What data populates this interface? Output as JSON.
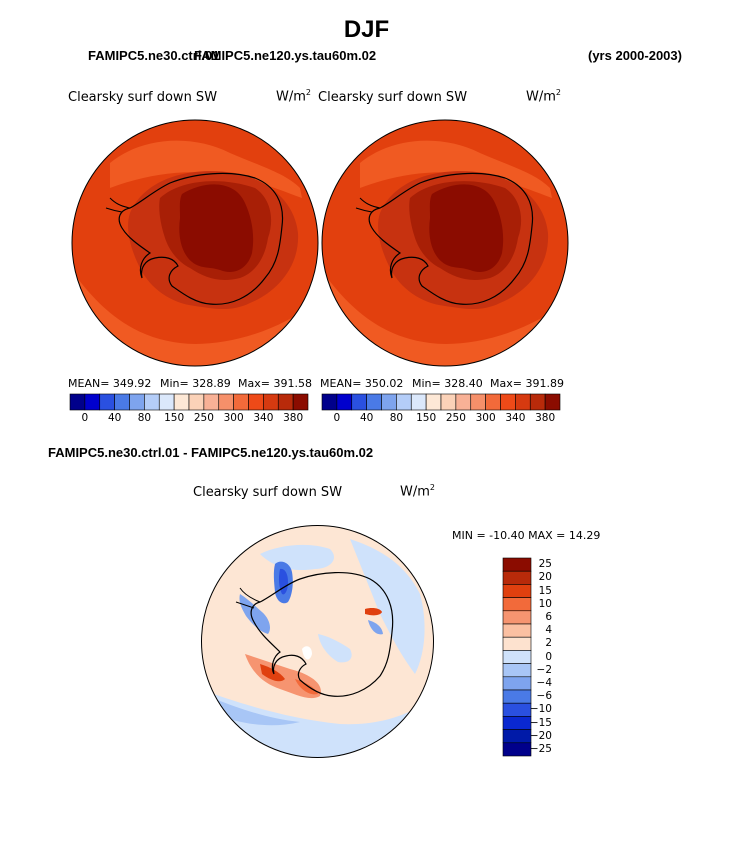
{
  "figure": {
    "title": "DJF",
    "case_left": "FAMIPC5.ne30.ctrl.01",
    "case_right_overlap": "FAMIPC5.ne120.ys.tau60m.02",
    "years": "(yrs 2000-2003)",
    "diff_title": "FAMIPC5.ne30.ctrl.01 - FAMIPC5.ne120.ys.tau60m.02"
  },
  "panels": [
    {
      "variable": "Clearsky surf down SW",
      "units": "W/m",
      "units_sup": "2",
      "mean": "MEAN= 349.92",
      "min": "Min= 328.89",
      "max": "Max= 391.58"
    },
    {
      "variable": "Clearsky surf down SW",
      "units": "W/m",
      "units_sup": "2",
      "mean": "MEAN= 350.02",
      "min": "Min= 328.40",
      "max": "Max= 391.89"
    }
  ],
  "diff_panel": {
    "variable": "Clearsky surf down SW",
    "units": "W/m",
    "units_sup": "2",
    "minmax": "MIN = -10.40 MAX =  14.29"
  },
  "colorbar_abs": {
    "colors": [
      "#00008b",
      "#0000cd",
      "#2a50e0",
      "#4a7ae6",
      "#7ea4ee",
      "#b4cdf8",
      "#dbe8fb",
      "#fde8d6",
      "#fbd2b8",
      "#f8b196",
      "#f6906a",
      "#f26a3a",
      "#ee4a18",
      "#d63a10",
      "#b82a0a",
      "#8b0c00"
    ],
    "ticks": [
      "0",
      "40",
      "80",
      "150",
      "250",
      "300",
      "340",
      "380"
    ]
  },
  "colorbar_diff": {
    "colors": [
      "#8b0c00",
      "#b82a0a",
      "#e0400f",
      "#f26a3a",
      "#f69470",
      "#fbc0a2",
      "#fde2cf",
      "#cfe2fb",
      "#a8c6f6",
      "#7ea4ee",
      "#4a7ae6",
      "#2a50e0",
      "#0a28d0",
      "#001aa8",
      "#00008b"
    ],
    "ticks": [
      "25",
      "20",
      "15",
      "10",
      "6",
      "4",
      "2",
      "0",
      "-2",
      "-4",
      "-6",
      "-10",
      "-15",
      "-20",
      "-25"
    ]
  },
  "chart_data": [
    {
      "type": "heatmap",
      "title": "Clearsky surf down SW",
      "units": "W/m2",
      "projection": "south polar stereographic",
      "stats": {
        "mean": 349.92,
        "min": 328.89,
        "max": 391.58
      },
      "levels": [
        0,
        40,
        80,
        150,
        250,
        300,
        340,
        380
      ]
    },
    {
      "type": "heatmap",
      "title": "Clearsky surf down SW",
      "units": "W/m2",
      "projection": "south polar stereographic",
      "stats": {
        "mean": 350.02,
        "min": 328.4,
        "max": 391.89
      },
      "levels": [
        0,
        40,
        80,
        150,
        250,
        300,
        340,
        380
      ]
    },
    {
      "type": "heatmap",
      "title": "Clearsky surf down SW",
      "units": "W/m2",
      "projection": "south polar stereographic",
      "difference": true,
      "stats": {
        "min": -10.4,
        "max": 14.29
      },
      "levels": [
        25,
        20,
        15,
        10,
        6,
        4,
        2,
        0,
        -2,
        -4,
        -6,
        -10,
        -15,
        -20,
        -25
      ]
    }
  ]
}
